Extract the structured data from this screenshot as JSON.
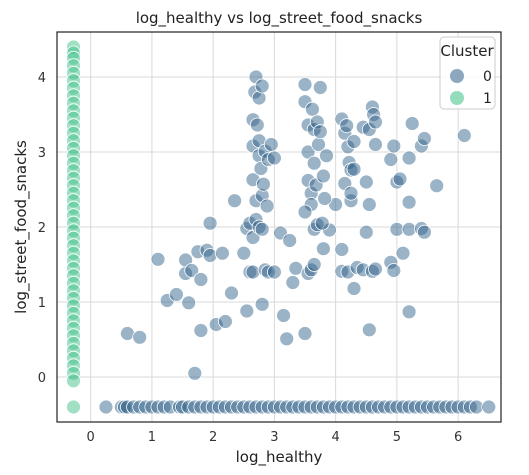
{
  "chart_data": {
    "type": "scatter",
    "title": "log_healthy vs log_street_food_snacks",
    "xlabel": "log_healthy",
    "ylabel": "log_street_food_snacks",
    "xlim": [
      -0.55,
      6.7
    ],
    "ylim": [
      -0.6,
      4.6
    ],
    "xticks": [
      "0",
      "1",
      "2",
      "3",
      "4",
      "5",
      "6"
    ],
    "yticks": [
      "0",
      "1",
      "2",
      "3",
      "4"
    ],
    "xtick_values": [
      0,
      1,
      2,
      3,
      4,
      5,
      6
    ],
    "ytick_values": [
      0,
      1,
      2,
      3,
      4
    ],
    "grid": true,
    "legend_position": "top-right",
    "legend_title": "Cluster",
    "series": [
      {
        "name": "0",
        "color": "#2f6088",
        "points": [
          [
            0.25,
            -0.4
          ],
          [
            0.5,
            -0.4
          ],
          [
            0.55,
            -0.4
          ],
          [
            0.6,
            -0.4
          ],
          [
            0.7,
            -0.4
          ],
          [
            0.8,
            -0.4
          ],
          [
            0.9,
            -0.4
          ],
          [
            1.0,
            -0.4
          ],
          [
            1.1,
            -0.4
          ],
          [
            1.2,
            -0.4
          ],
          [
            1.3,
            -0.4
          ],
          [
            1.45,
            -0.4
          ],
          [
            1.5,
            -0.4
          ],
          [
            1.6,
            -0.4
          ],
          [
            1.7,
            -0.4
          ],
          [
            1.8,
            -0.4
          ],
          [
            1.9,
            -0.4
          ],
          [
            2.0,
            -0.4
          ],
          [
            2.1,
            -0.4
          ],
          [
            2.2,
            -0.4
          ],
          [
            2.3,
            -0.4
          ],
          [
            2.4,
            -0.4
          ],
          [
            2.5,
            -0.4
          ],
          [
            2.6,
            -0.4
          ],
          [
            2.7,
            -0.4
          ],
          [
            2.8,
            -0.4
          ],
          [
            2.9,
            -0.4
          ],
          [
            3.0,
            -0.4
          ],
          [
            3.1,
            -0.4
          ],
          [
            3.2,
            -0.4
          ],
          [
            3.3,
            -0.4
          ],
          [
            3.4,
            -0.4
          ],
          [
            3.5,
            -0.4
          ],
          [
            3.6,
            -0.4
          ],
          [
            3.7,
            -0.4
          ],
          [
            3.8,
            -0.4
          ],
          [
            3.9,
            -0.4
          ],
          [
            4.0,
            -0.4
          ],
          [
            4.1,
            -0.4
          ],
          [
            4.2,
            -0.4
          ],
          [
            4.3,
            -0.4
          ],
          [
            4.4,
            -0.4
          ],
          [
            4.5,
            -0.4
          ],
          [
            4.6,
            -0.4
          ],
          [
            4.7,
            -0.4
          ],
          [
            4.8,
            -0.4
          ],
          [
            4.9,
            -0.4
          ],
          [
            5.0,
            -0.4
          ],
          [
            5.1,
            -0.4
          ],
          [
            5.2,
            -0.4
          ],
          [
            5.3,
            -0.4
          ],
          [
            5.4,
            -0.4
          ],
          [
            5.5,
            -0.4
          ],
          [
            5.6,
            -0.4
          ],
          [
            5.7,
            -0.4
          ],
          [
            5.8,
            -0.4
          ],
          [
            5.9,
            -0.4
          ],
          [
            6.0,
            -0.4
          ],
          [
            6.1,
            -0.4
          ],
          [
            6.2,
            -0.4
          ],
          [
            6.3,
            -0.4
          ],
          [
            6.5,
            -0.4
          ],
          [
            0.6,
            0.58
          ],
          [
            0.8,
            0.53
          ],
          [
            1.7,
            0.05
          ],
          [
            1.1,
            1.57
          ],
          [
            1.25,
            1.02
          ],
          [
            1.4,
            1.1
          ],
          [
            1.55,
            1.38
          ],
          [
            1.55,
            1.56
          ],
          [
            1.6,
            0.99
          ],
          [
            1.65,
            1.42
          ],
          [
            1.75,
            1.67
          ],
          [
            1.8,
            1.3
          ],
          [
            1.8,
            0.62
          ],
          [
            1.9,
            1.69
          ],
          [
            1.95,
            1.62
          ],
          [
            1.95,
            2.05
          ],
          [
            2.05,
            0.7
          ],
          [
            2.15,
            1.65
          ],
          [
            2.2,
            0.74
          ],
          [
            2.3,
            1.12
          ],
          [
            2.35,
            2.35
          ],
          [
            2.5,
            1.65
          ],
          [
            2.55,
            0.88
          ],
          [
            2.55,
            1.98
          ],
          [
            2.6,
            2.05
          ],
          [
            2.6,
            1.4
          ],
          [
            2.65,
            1.4
          ],
          [
            2.65,
            1.86
          ],
          [
            2.7,
            2.1
          ],
          [
            2.7,
            2.35
          ],
          [
            2.75,
            2.0
          ],
          [
            2.8,
            0.97
          ],
          [
            2.8,
            1.97
          ],
          [
            2.85,
            1.43
          ],
          [
            2.9,
            1.4
          ],
          [
            3.0,
            1.4
          ],
          [
            3.1,
            1.92
          ],
          [
            3.15,
            0.82
          ],
          [
            3.2,
            0.51
          ],
          [
            3.25,
            1.82
          ],
          [
            3.3,
            1.26
          ],
          [
            3.35,
            1.45
          ],
          [
            3.5,
            0.58
          ],
          [
            3.55,
            1.38
          ],
          [
            3.6,
            1.43
          ],
          [
            3.65,
            1.5
          ],
          [
            3.65,
            1.97
          ],
          [
            3.7,
            2.03
          ],
          [
            3.8,
            1.71
          ],
          [
            3.9,
            1.96
          ],
          [
            4.0,
            2.3
          ],
          [
            4.1,
            1.41
          ],
          [
            4.1,
            1.7
          ],
          [
            4.2,
            1.4
          ],
          [
            4.25,
            2.35
          ],
          [
            4.3,
            1.18
          ],
          [
            4.35,
            1.46
          ],
          [
            4.45,
            1.43
          ],
          [
            4.5,
            1.93
          ],
          [
            4.55,
            0.63
          ],
          [
            4.6,
            1.41
          ],
          [
            4.65,
            1.44
          ],
          [
            4.9,
            1.53
          ],
          [
            4.95,
            1.42
          ],
          [
            5.0,
            1.97
          ],
          [
            5.1,
            1.65
          ],
          [
            5.2,
            0.87
          ],
          [
            5.2,
            1.97
          ],
          [
            5.4,
            1.98
          ],
          [
            5.45,
            1.93
          ],
          [
            2.65,
            3.43
          ],
          [
            2.65,
            3.08
          ],
          [
            2.65,
            2.63
          ],
          [
            2.68,
            3.8
          ],
          [
            2.7,
            4.0
          ],
          [
            2.72,
            3.36
          ],
          [
            2.75,
            3.72
          ],
          [
            2.75,
            3.15
          ],
          [
            2.75,
            2.95
          ],
          [
            2.78,
            2.78
          ],
          [
            2.8,
            3.88
          ],
          [
            2.8,
            2.42
          ],
          [
            2.82,
            2.57
          ],
          [
            2.85,
            3.01
          ],
          [
            2.88,
            2.28
          ],
          [
            2.9,
            2.9
          ],
          [
            2.95,
            3.1
          ],
          [
            3.0,
            2.92
          ],
          [
            3.5,
            3.9
          ],
          [
            3.5,
            3.67
          ],
          [
            3.55,
            3.36
          ],
          [
            3.55,
            3.0
          ],
          [
            3.55,
            2.62
          ],
          [
            3.6,
            2.45
          ],
          [
            3.6,
            2.3
          ],
          [
            3.62,
            3.57
          ],
          [
            3.65,
            3.3
          ],
          [
            3.65,
            2.85
          ],
          [
            3.68,
            2.56
          ],
          [
            3.7,
            3.4
          ],
          [
            3.72,
            3.1
          ],
          [
            3.75,
            3.86
          ],
          [
            3.75,
            3.27
          ],
          [
            3.78,
            2.05
          ],
          [
            3.8,
            2.68
          ],
          [
            3.82,
            2.38
          ],
          [
            3.85,
            2.95
          ],
          [
            3.5,
            2.2
          ],
          [
            4.1,
            3.44
          ],
          [
            4.15,
            3.25
          ],
          [
            4.15,
            2.58
          ],
          [
            4.18,
            3.35
          ],
          [
            4.2,
            3.07
          ],
          [
            4.22,
            2.86
          ],
          [
            4.25,
            2.76
          ],
          [
            4.25,
            2.45
          ],
          [
            4.3,
            2.77
          ],
          [
            4.3,
            3.14
          ],
          [
            4.45,
            3.33
          ],
          [
            4.5,
            2.6
          ],
          [
            4.55,
            3.3
          ],
          [
            4.6,
            3.6
          ],
          [
            4.62,
            3.5
          ],
          [
            4.65,
            3.4
          ],
          [
            4.65,
            3.1
          ],
          [
            4.55,
            2.3
          ],
          [
            4.9,
            2.9
          ],
          [
            4.95,
            3.08
          ],
          [
            5.0,
            2.6
          ],
          [
            5.05,
            2.64
          ],
          [
            5.2,
            2.33
          ],
          [
            5.2,
            2.92
          ],
          [
            5.25,
            3.38
          ],
          [
            5.4,
            3.08
          ],
          [
            5.45,
            3.18
          ],
          [
            5.65,
            2.55
          ],
          [
            6.1,
            3.22
          ]
        ]
      },
      {
        "name": "1",
        "color": "#3bbf85",
        "points": [
          [
            -0.28,
            4.4
          ],
          [
            -0.28,
            4.32
          ],
          [
            -0.28,
            4.25
          ],
          [
            -0.28,
            4.15
          ],
          [
            -0.28,
            4.05
          ],
          [
            -0.28,
            3.95
          ],
          [
            -0.28,
            3.85
          ],
          [
            -0.28,
            3.75
          ],
          [
            -0.28,
            3.65
          ],
          [
            -0.28,
            3.55
          ],
          [
            -0.28,
            3.45
          ],
          [
            -0.28,
            3.35
          ],
          [
            -0.28,
            3.25
          ],
          [
            -0.28,
            3.15
          ],
          [
            -0.28,
            3.05
          ],
          [
            -0.28,
            2.95
          ],
          [
            -0.28,
            2.85
          ],
          [
            -0.28,
            2.75
          ],
          [
            -0.28,
            2.65
          ],
          [
            -0.28,
            2.55
          ],
          [
            -0.28,
            2.45
          ],
          [
            -0.28,
            2.35
          ],
          [
            -0.28,
            2.25
          ],
          [
            -0.28,
            2.15
          ],
          [
            -0.28,
            2.05
          ],
          [
            -0.28,
            1.95
          ],
          [
            -0.28,
            1.85
          ],
          [
            -0.28,
            1.75
          ],
          [
            -0.28,
            1.65
          ],
          [
            -0.28,
            1.55
          ],
          [
            -0.28,
            1.45
          ],
          [
            -0.28,
            1.35
          ],
          [
            -0.28,
            1.25
          ],
          [
            -0.28,
            1.15
          ],
          [
            -0.28,
            1.05
          ],
          [
            -0.28,
            0.95
          ],
          [
            -0.28,
            0.85
          ],
          [
            -0.28,
            0.75
          ],
          [
            -0.28,
            0.65
          ],
          [
            -0.28,
            0.55
          ],
          [
            -0.28,
            0.45
          ],
          [
            -0.28,
            0.35
          ],
          [
            -0.28,
            0.25
          ],
          [
            -0.28,
            0.15
          ],
          [
            -0.28,
            0.05
          ],
          [
            -0.28,
            -0.05
          ],
          [
            -0.28,
            -0.4
          ]
        ]
      }
    ]
  }
}
